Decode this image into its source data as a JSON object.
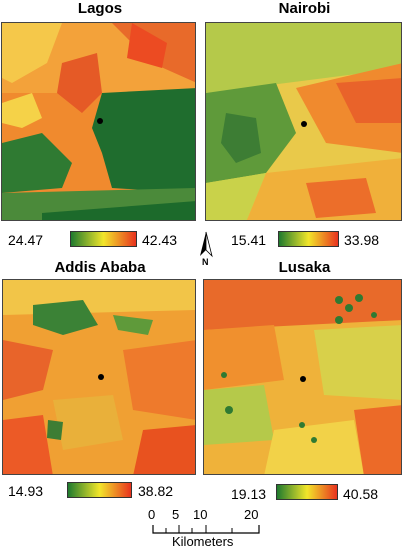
{
  "panels": [
    {
      "city": "Lagos",
      "min": "24.47",
      "max": "42.43"
    },
    {
      "city": "Nairobi",
      "min": "15.41",
      "max": "33.98"
    },
    {
      "city": "Addis Ababa",
      "min": "14.93",
      "max": "38.82"
    },
    {
      "city": "Lusaka",
      "min": "19.13",
      "max": "40.58"
    }
  ],
  "north_label": "N",
  "scale": {
    "ticks": [
      "0",
      "5",
      "10",
      "20"
    ],
    "unit": "Kilometers"
  },
  "colors": {
    "low": "#1f7a2e",
    "mid": "#f2e62a",
    "high": "#e8321e"
  }
}
